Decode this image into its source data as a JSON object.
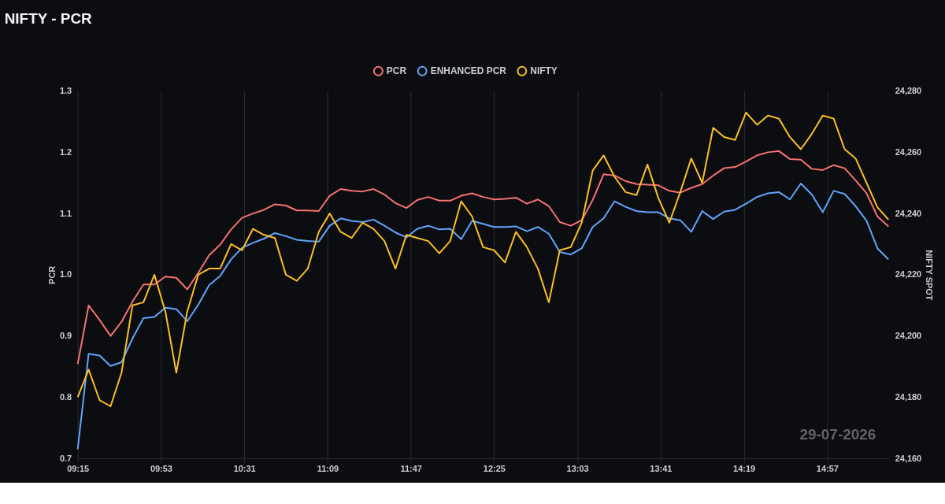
{
  "chart_data": {
    "type": "line",
    "title": "NIFTY - PCR",
    "ylabel": "PCR",
    "y2label": "NIFTY SPOT",
    "x": [
      9.25,
      9.3333,
      9.4167,
      9.5,
      9.5833,
      9.6667,
      9.75,
      9.8333,
      9.9167,
      10,
      10.0833,
      10.1667,
      10.25,
      10.3333,
      10.4167,
      10.5,
      10.5833,
      10.6667,
      10.75,
      10.8333,
      10.9167,
      11,
      11.0833,
      11.1667,
      11.25,
      11.3333,
      11.4167,
      11.5,
      11.5833,
      11.6667,
      11.75,
      11.8333,
      11.9167,
      12,
      12.0833,
      12.1667,
      12.25,
      12.3333,
      12.4167,
      12.5,
      12.5833,
      12.6667,
      12.75,
      12.8333,
      12.9167,
      13,
      13.0833,
      13.1667,
      13.25,
      13.3333,
      13.4167,
      13.5,
      13.5833,
      13.6667,
      13.75,
      13.8333,
      13.9167,
      14,
      14.0833,
      14.1667,
      14.25,
      14.3333,
      14.4167,
      14.5,
      14.5833,
      14.6667,
      14.75,
      14.8333,
      14.9167,
      15,
      15.0833,
      15.1667,
      15.25,
      15.3333,
      15.4167
    ],
    "xlim": [
      9.25,
      15.4167
    ],
    "xticks": [
      {
        "value": 9.25,
        "label": "09:15"
      },
      {
        "value": 9.8833,
        "label": "09:53"
      },
      {
        "value": 10.5167,
        "label": "10:31"
      },
      {
        "value": 11.15,
        "label": "11:09"
      },
      {
        "value": 11.7833,
        "label": "11:47"
      },
      {
        "value": 12.4167,
        "label": "12:25"
      },
      {
        "value": 13.05,
        "label": "13:03"
      },
      {
        "value": 13.6833,
        "label": "13:41"
      },
      {
        "value": 14.3167,
        "label": "14:19"
      },
      {
        "value": 14.95,
        "label": "14:57"
      }
    ],
    "ylim": [
      0.7,
      1.3
    ],
    "yticks": [
      0.7,
      0.8,
      0.9,
      {
        "value": 1,
        "label": "1.0"
      },
      1.1,
      1.2,
      1.3
    ],
    "y2lim": [
      24160,
      24280
    ],
    "y2ticks": [
      {
        "value": 24160,
        "label": "24,160"
      },
      {
        "value": 24180,
        "label": "24,180"
      },
      {
        "value": 24200,
        "label": "24,200"
      },
      {
        "value": 24220,
        "label": "24,220"
      },
      {
        "value": 24240,
        "label": "24,240"
      },
      {
        "value": 24260,
        "label": "24,260"
      },
      {
        "value": 24280,
        "label": "24,280"
      }
    ],
    "series": [
      {
        "name": "PCR",
        "color": "#f87171",
        "values": [
          0.854,
          0.95,
          0.926,
          0.9,
          0.923,
          0.956,
          0.984,
          0.984,
          0.997,
          0.995,
          0.976,
          1.003,
          1.032,
          1.049,
          1.074,
          1.093,
          1.1,
          1.106,
          1.115,
          1.113,
          1.105,
          1.105,
          1.104,
          1.129,
          1.14,
          1.137,
          1.136,
          1.14,
          1.131,
          1.117,
          1.109,
          1.122,
          1.127,
          1.121,
          1.121,
          1.129,
          1.133,
          1.127,
          1.123,
          1.124,
          1.126,
          1.116,
          1.123,
          1.112,
          1.086,
          1.08,
          1.089,
          1.122,
          1.164,
          1.162,
          1.153,
          1.148,
          1.147,
          1.146,
          1.137,
          1.134,
          1.142,
          1.148,
          1.162,
          1.174,
          1.176,
          1.185,
          1.195,
          1.2,
          1.202,
          1.189,
          1.188,
          1.173,
          1.171,
          1.179,
          1.174,
          1.154,
          1.133,
          1.095,
          1.079
        ]
      },
      {
        "name": "ENHANCED PCR",
        "color": "#60a5fa",
        "values": [
          0.715,
          0.871,
          0.868,
          0.851,
          0.857,
          0.896,
          0.929,
          0.931,
          0.946,
          0.944,
          0.924,
          0.951,
          0.983,
          0.998,
          1.025,
          1.044,
          1.052,
          1.059,
          1.068,
          1.063,
          1.057,
          1.055,
          1.054,
          1.08,
          1.092,
          1.088,
          1.086,
          1.09,
          1.08,
          1.069,
          1.061,
          1.075,
          1.08,
          1.074,
          1.075,
          1.058,
          1.088,
          1.083,
          1.078,
          1.078,
          1.079,
          1.071,
          1.078,
          1.067,
          1.037,
          1.033,
          1.043,
          1.078,
          1.092,
          1.12,
          1.111,
          1.104,
          1.102,
          1.102,
          1.092,
          1.089,
          1.07,
          1.104,
          1.091,
          1.103,
          1.106,
          1.116,
          1.127,
          1.133,
          1.135,
          1.123,
          1.149,
          1.131,
          1.102,
          1.137,
          1.132,
          1.112,
          1.088,
          1.043,
          1.025
        ]
      },
      {
        "name": "NIFTY",
        "color": "#fbbf24",
        "axis": "y2",
        "values": [
          24180,
          24189,
          24179,
          24177,
          24188,
          24210,
          24211,
          24220,
          24208,
          24188,
          24208,
          24220,
          24222,
          24222,
          24230,
          24228,
          24235,
          24233,
          24232,
          24220,
          24218,
          24222,
          24234,
          24240,
          24234,
          24232,
          24237,
          24235,
          24231,
          24222,
          24233,
          24232,
          24231,
          24227,
          24231,
          24244,
          24239,
          24229,
          24228,
          24224,
          24234,
          24229,
          24222,
          24211,
          24228,
          24229,
          24237,
          24254,
          24259,
          24252,
          24247,
          24246,
          24256,
          24245,
          24237,
          24247,
          24258,
          24250,
          24268,
          24265,
          24264,
          24273,
          24269,
          24272,
          24271,
          24265,
          24261,
          24266,
          24272,
          24271,
          24261,
          24258,
          24250,
          24242,
          24238
        ]
      }
    ],
    "legend": "top",
    "grid": "x",
    "marker": "none",
    "line_style": "solid",
    "annotations": [
      "29-07-2026"
    ]
  }
}
